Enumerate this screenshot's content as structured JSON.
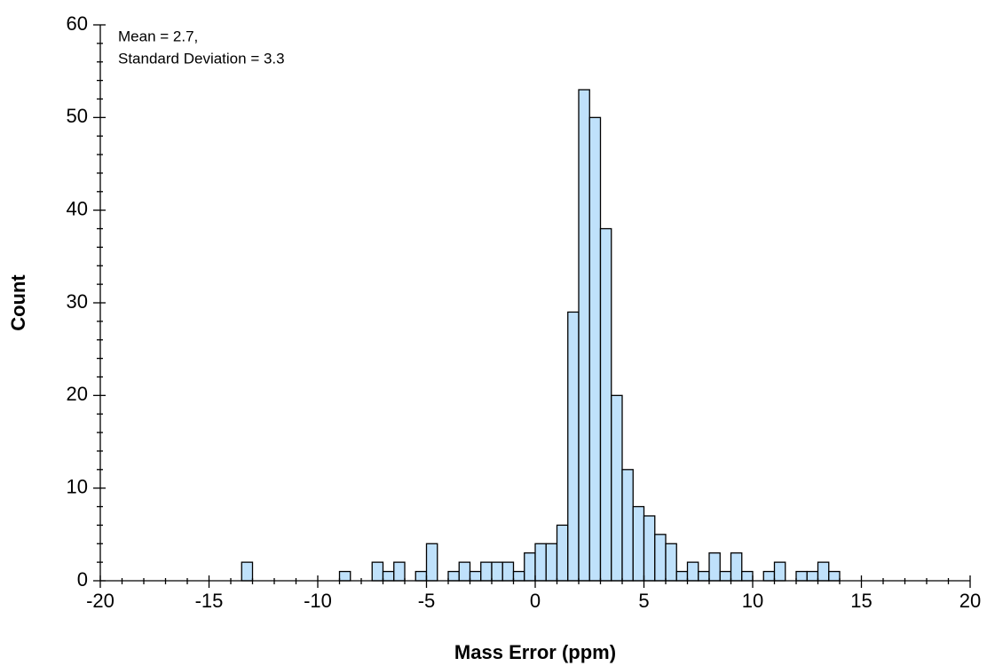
{
  "chart_data": {
    "type": "histogram",
    "xlabel": "Mass Error (ppm)",
    "ylabel": "Count",
    "annotations": [
      "Mean = 2.7,",
      "Standard Deviation = 3.3"
    ],
    "bins": [
      -13.5,
      -13,
      -12.5,
      -12,
      -11.5,
      -11,
      -10.5,
      -10,
      -9.5,
      -9,
      -8.5,
      -8,
      -7.5,
      -7,
      -6.5,
      -6,
      -5.5,
      -5,
      -4.5,
      -4,
      -3.5,
      -3,
      -2.5,
      -2,
      -1.5,
      -1,
      -0.5,
      0,
      0.5,
      1,
      1.5,
      2,
      2.5,
      3,
      3.5,
      4,
      4.5,
      5,
      5.5,
      6,
      6.5,
      7,
      7.5,
      8,
      8.5,
      9,
      9.5,
      10,
      10.5,
      11,
      11.5,
      12,
      12.5,
      13,
      13.5,
      14
    ],
    "values": [
      2,
      0,
      0,
      0,
      0,
      0,
      0,
      0,
      0,
      1,
      0,
      0,
      2,
      1,
      2,
      0,
      1,
      4,
      0,
      1,
      2,
      1,
      2,
      2,
      2,
      1,
      3,
      4,
      4,
      6,
      29,
      53,
      50,
      38,
      20,
      12,
      8,
      7,
      5,
      4,
      1,
      2,
      1,
      3,
      1,
      3,
      1,
      0,
      1,
      2,
      0,
      1,
      1,
      2,
      1
    ],
    "color": "#bfe1fb",
    "xlim": [
      -20,
      20
    ],
    "ylim": [
      0,
      60
    ],
    "xticks": [
      -20,
      -15,
      -10,
      -5,
      0,
      5,
      10,
      15,
      20
    ],
    "yticks": [
      0,
      10,
      20,
      30,
      40,
      50,
      60
    ],
    "xminorticks": [
      -19,
      -18,
      -17,
      -16,
      -14,
      -13,
      -12,
      -11,
      -9,
      -8,
      -7,
      -6,
      -4,
      -3,
      -2,
      -1,
      1,
      2,
      3,
      4,
      6,
      7,
      8,
      9,
      11,
      12,
      13,
      14,
      16,
      17,
      18,
      19
    ],
    "yminorticks": [
      2,
      4,
      6,
      8,
      12,
      14,
      16,
      18,
      22,
      24,
      26,
      28,
      32,
      34,
      36,
      38,
      42,
      44,
      46,
      48,
      52,
      54,
      56,
      58
    ],
    "grid": false
  }
}
